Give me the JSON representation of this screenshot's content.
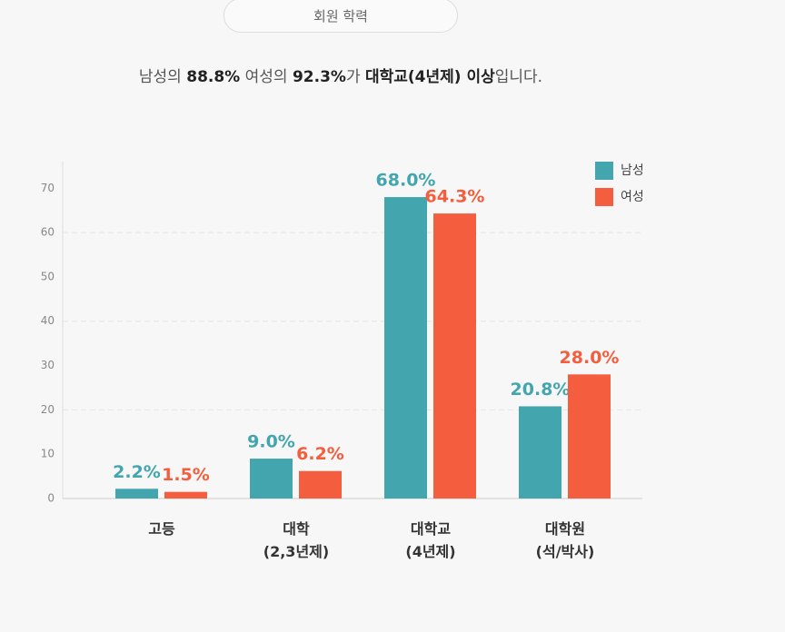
{
  "tab": "회원 학력",
  "subtitle": [
    {
      "text": "남성의 ",
      "bold": false
    },
    {
      "text": "88.8%",
      "bold": true
    },
    {
      "text": " 여성의 ",
      "bold": false
    },
    {
      "text": "92.3%",
      "bold": true
    },
    {
      "text": "가 ",
      "bold": false
    },
    {
      "text": "대학교(4년제) 이상",
      "bold": true
    },
    {
      "text": "입니다.",
      "bold": false
    }
  ],
  "chart_data": {
    "type": "bar",
    "categories": [
      "고등",
      "대학\n(2,3년제)",
      "대학교\n(4년제)",
      "대학원\n(석/박사)"
    ],
    "series": [
      {
        "name": "남성",
        "color": "#43a5ae",
        "values": [
          2.2,
          9.0,
          68.0,
          20.8
        ],
        "value_labels": [
          "2.2%",
          "9.0%",
          "68.0%",
          "20.8%"
        ]
      },
      {
        "name": "여성",
        "color": "#f45d3e",
        "values": [
          1.5,
          6.2,
          64.3,
          28.0
        ],
        "value_labels": [
          "1.5%",
          "6.2%",
          "64.3%",
          "28.0%"
        ]
      }
    ],
    "ylim": [
      0,
      76
    ],
    "yticks": [
      0,
      10,
      20,
      30,
      40,
      50,
      60,
      70
    ],
    "grid": true,
    "legend": "top-right"
  }
}
